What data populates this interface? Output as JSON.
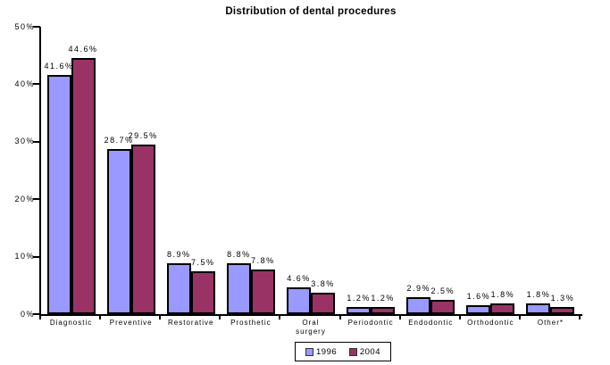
{
  "title": "Distribution of dental procedures",
  "chart_data": {
    "type": "bar",
    "title": "Distribution of dental procedures",
    "categories": [
      "Diagnostic",
      "Preventive",
      "Restorative",
      "Prosthetic",
      "Oral surgery",
      "Periodontic",
      "Endodontic",
      "Orthodontic",
      "Other*"
    ],
    "series": [
      {
        "name": "1996",
        "color": "#9999FF",
        "values": [
          41.6,
          28.7,
          8.9,
          8.8,
          4.6,
          1.2,
          2.9,
          1.6,
          1.8
        ]
      },
      {
        "name": "2004",
        "color": "#993366",
        "values": [
          44.6,
          29.5,
          7.5,
          7.8,
          3.8,
          1.2,
          2.5,
          1.8,
          1.3
        ]
      }
    ],
    "value_label_suffix": "%",
    "xlabel": "",
    "ylabel": "",
    "ylim": [
      0,
      50
    ],
    "y_ticks": [
      "0%",
      "10%",
      "20%",
      "30%",
      "40%",
      "50%"
    ],
    "grid": false,
    "legend_position": "bottom-center",
    "bar_outline_color": "#000000",
    "axis_color": "#000000",
    "background_color": "#FFFFFF"
  }
}
